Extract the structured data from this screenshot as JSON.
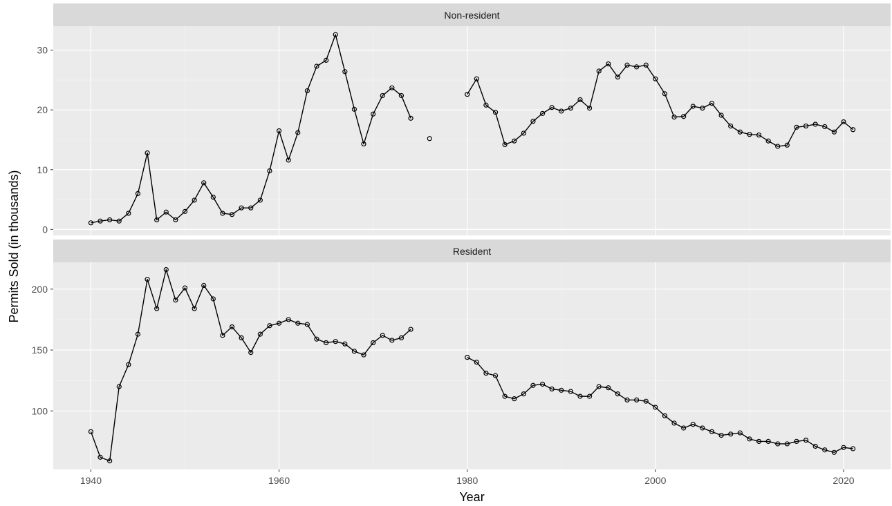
{
  "chart_data": {
    "type": "line",
    "xlabel": "Year",
    "ylabel": "Permits Sold (in thousands)",
    "xlim": [
      1936,
      2025
    ],
    "x_ticks": [
      1940,
      1960,
      1980,
      2000,
      2020
    ],
    "grid": true,
    "facets": [
      {
        "strip": "Non-resident",
        "ylim": [
          -1,
          34
        ],
        "y_ticks": [
          0,
          10,
          20,
          30
        ],
        "points": [
          [
            1940,
            1.1
          ],
          [
            1941,
            1.4
          ],
          [
            1942,
            1.6
          ],
          [
            1943,
            1.4
          ],
          [
            1944,
            2.7
          ],
          [
            1945,
            6.0
          ],
          [
            1946,
            12.8
          ],
          [
            1947,
            1.6
          ],
          [
            1948,
            2.9
          ],
          [
            1949,
            1.6
          ],
          [
            1950,
            3.0
          ],
          [
            1951,
            4.9
          ],
          [
            1952,
            7.8
          ],
          [
            1953,
            5.4
          ],
          [
            1954,
            2.7
          ],
          [
            1955,
            2.5
          ],
          [
            1956,
            3.6
          ],
          [
            1957,
            3.6
          ],
          [
            1958,
            4.9
          ],
          [
            1959,
            9.8
          ],
          [
            1960,
            16.5
          ],
          [
            1961,
            11.6
          ],
          [
            1962,
            16.2
          ],
          [
            1963,
            23.2
          ],
          [
            1964,
            27.3
          ],
          [
            1965,
            28.3
          ],
          [
            1966,
            32.6
          ],
          [
            1967,
            26.4
          ],
          [
            1968,
            20.1
          ],
          [
            1969,
            14.3
          ],
          [
            1970,
            19.3
          ],
          [
            1971,
            22.4
          ],
          [
            1972,
            23.7
          ],
          [
            1973,
            22.4
          ],
          [
            1974,
            18.6
          ],
          [
            1975,
            null
          ],
          [
            1976,
            15.2
          ],
          [
            1977,
            null
          ],
          [
            1978,
            null
          ],
          [
            1979,
            null
          ],
          [
            1980,
            22.6
          ],
          [
            1981,
            25.2
          ],
          [
            1982,
            20.8
          ],
          [
            1983,
            19.6
          ],
          [
            1984,
            14.2
          ],
          [
            1985,
            14.8
          ],
          [
            1986,
            16.1
          ],
          [
            1987,
            18.1
          ],
          [
            1988,
            19.4
          ],
          [
            1989,
            20.4
          ],
          [
            1990,
            19.8
          ],
          [
            1991,
            20.3
          ],
          [
            1992,
            21.7
          ],
          [
            1993,
            20.3
          ],
          [
            1994,
            26.5
          ],
          [
            1995,
            27.7
          ],
          [
            1996,
            25.5
          ],
          [
            1997,
            27.5
          ],
          [
            1998,
            27.2
          ],
          [
            1999,
            27.5
          ],
          [
            2000,
            25.2
          ],
          [
            2001,
            22.7
          ],
          [
            2002,
            18.8
          ],
          [
            2003,
            18.9
          ],
          [
            2004,
            20.6
          ],
          [
            2005,
            20.3
          ],
          [
            2006,
            21.1
          ],
          [
            2007,
            19.1
          ],
          [
            2008,
            17.3
          ],
          [
            2009,
            16.3
          ],
          [
            2010,
            15.9
          ],
          [
            2011,
            15.8
          ],
          [
            2012,
            14.8
          ],
          [
            2013,
            13.9
          ],
          [
            2014,
            14.1
          ],
          [
            2015,
            17.1
          ],
          [
            2016,
            17.3
          ],
          [
            2017,
            17.6
          ],
          [
            2018,
            17.2
          ],
          [
            2019,
            16.3
          ],
          [
            2020,
            18.0
          ],
          [
            2021,
            16.7
          ]
        ]
      },
      {
        "strip": "Resident",
        "ylim": [
          52,
          222
        ],
        "y_ticks": [
          100,
          150,
          200
        ],
        "points": [
          [
            1940,
            83
          ],
          [
            1941,
            62
          ],
          [
            1942,
            59
          ],
          [
            1943,
            120
          ],
          [
            1944,
            138
          ],
          [
            1945,
            163
          ],
          [
            1946,
            208
          ],
          [
            1947,
            184
          ],
          [
            1948,
            216
          ],
          [
            1949,
            191
          ],
          [
            1950,
            201
          ],
          [
            1951,
            184
          ],
          [
            1952,
            203
          ],
          [
            1953,
            192
          ],
          [
            1954,
            162
          ],
          [
            1955,
            169
          ],
          [
            1956,
            160
          ],
          [
            1957,
            148
          ],
          [
            1958,
            163
          ],
          [
            1959,
            170
          ],
          [
            1960,
            172
          ],
          [
            1961,
            175
          ],
          [
            1962,
            172
          ],
          [
            1963,
            171
          ],
          [
            1964,
            159
          ],
          [
            1965,
            156
          ],
          [
            1966,
            157
          ],
          [
            1967,
            155
          ],
          [
            1968,
            149
          ],
          [
            1969,
            146
          ],
          [
            1970,
            156
          ],
          [
            1971,
            162
          ],
          [
            1972,
            158
          ],
          [
            1973,
            160
          ],
          [
            1974,
            167
          ],
          [
            1975,
            null
          ],
          [
            1976,
            null
          ],
          [
            1977,
            null
          ],
          [
            1978,
            null
          ],
          [
            1979,
            null
          ],
          [
            1980,
            144
          ],
          [
            1981,
            140
          ],
          [
            1982,
            131
          ],
          [
            1983,
            129
          ],
          [
            1984,
            112
          ],
          [
            1985,
            110
          ],
          [
            1986,
            114
          ],
          [
            1987,
            121
          ],
          [
            1988,
            122
          ],
          [
            1989,
            118
          ],
          [
            1990,
            117
          ],
          [
            1991,
            116
          ],
          [
            1992,
            112
          ],
          [
            1993,
            112
          ],
          [
            1994,
            120
          ],
          [
            1995,
            119
          ],
          [
            1996,
            114
          ],
          [
            1997,
            109
          ],
          [
            1998,
            109
          ],
          [
            1999,
            108
          ],
          [
            2000,
            103
          ],
          [
            2001,
            96
          ],
          [
            2002,
            90
          ],
          [
            2003,
            86
          ],
          [
            2004,
            89
          ],
          [
            2005,
            86
          ],
          [
            2006,
            83
          ],
          [
            2007,
            80
          ],
          [
            2008,
            81
          ],
          [
            2009,
            82
          ],
          [
            2010,
            77
          ],
          [
            2011,
            75
          ],
          [
            2012,
            75
          ],
          [
            2013,
            73
          ],
          [
            2014,
            73
          ],
          [
            2015,
            75
          ],
          [
            2016,
            76
          ],
          [
            2017,
            71
          ],
          [
            2018,
            68
          ],
          [
            2019,
            66
          ],
          [
            2020,
            70
          ],
          [
            2021,
            69
          ]
        ]
      }
    ]
  }
}
